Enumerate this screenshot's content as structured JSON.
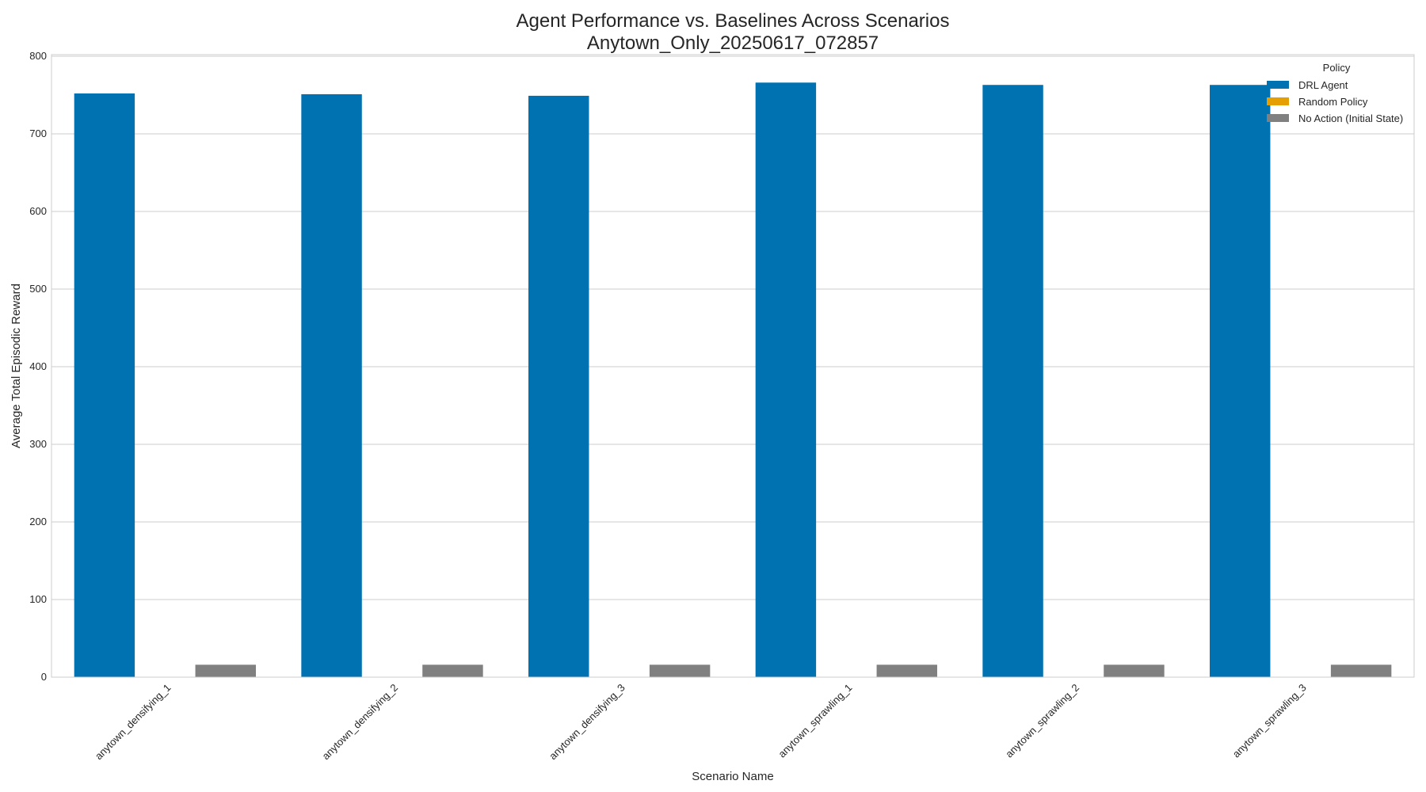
{
  "chart_data": {
    "type": "bar",
    "title": "Agent Performance vs. Baselines Across Scenarios",
    "subtitle": "Anytown_Only_20250617_072857",
    "xlabel": "Scenario Name",
    "ylabel": "Average Total Episodic Reward",
    "ylim": [
      0,
      802
    ],
    "yticks": [
      0,
      100,
      200,
      300,
      400,
      500,
      600,
      700,
      800
    ],
    "grid": true,
    "legend": {
      "title": "Policy",
      "placement": "top-right"
    },
    "categories": [
      "anytown_densifying_1",
      "anytown_densifying_2",
      "anytown_densifying_3",
      "anytown_sprawling_1",
      "anytown_sprawling_2",
      "anytown_sprawling_3"
    ],
    "series": [
      {
        "name": "DRL Agent",
        "color": "#0072b2",
        "values": [
          752,
          751,
          749,
          766,
          763,
          763
        ]
      },
      {
        "name": "Random Policy",
        "color": "#e69f00",
        "values": [
          0,
          0,
          0,
          0,
          0,
          0
        ]
      },
      {
        "name": "No Action (Initial State)",
        "color": "#808080",
        "values": [
          16,
          16,
          16,
          16,
          16,
          16
        ]
      }
    ]
  }
}
